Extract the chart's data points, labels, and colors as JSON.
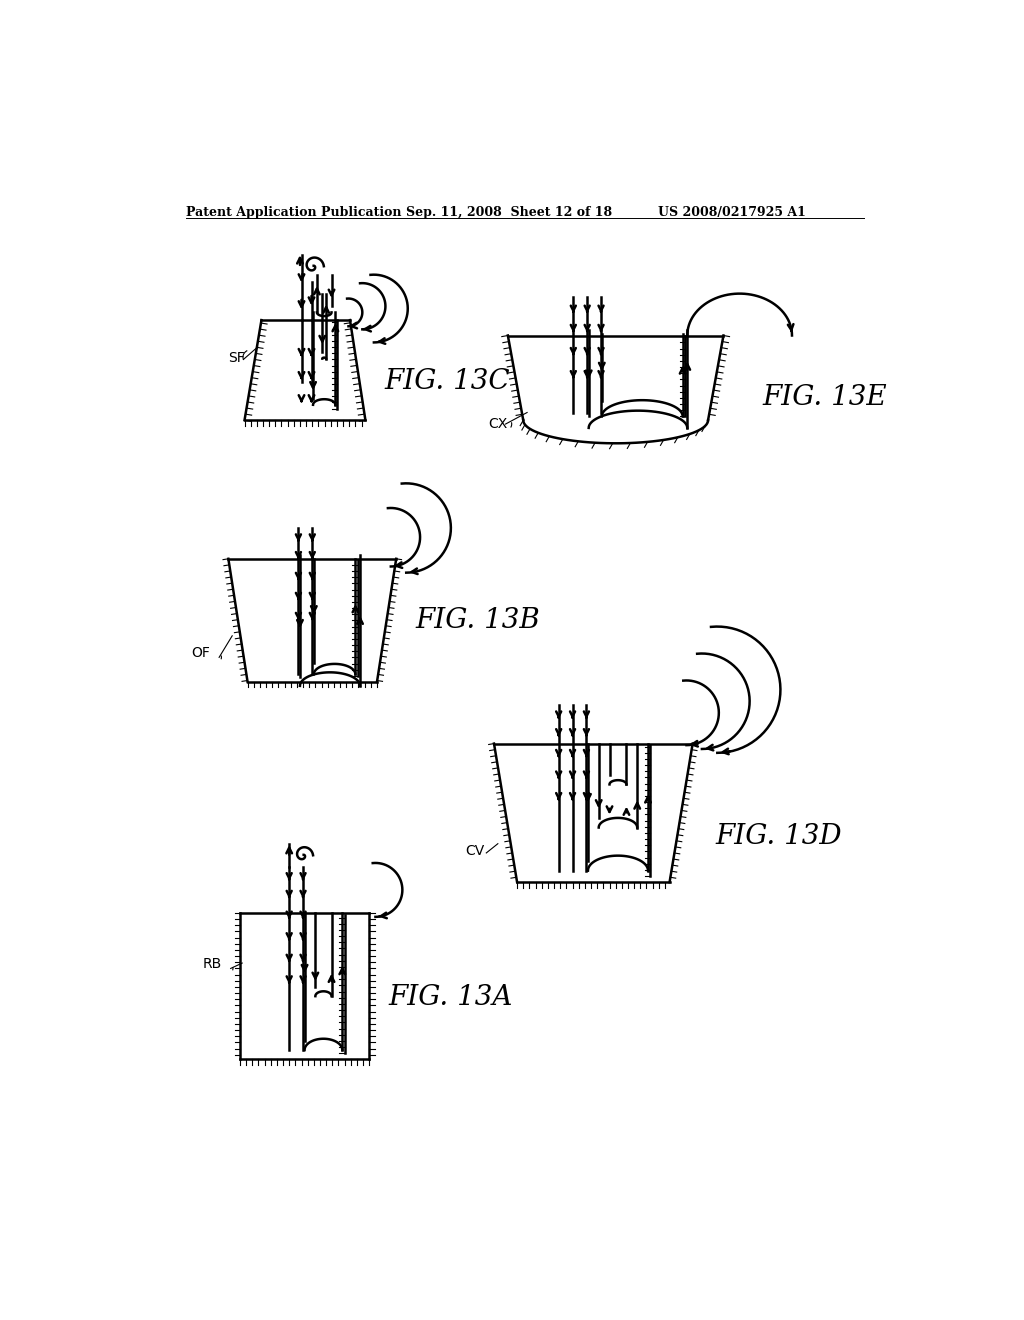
{
  "bg_color": "#ffffff",
  "line_color": "#000000",
  "header_left": "Patent Application Publication",
  "header_mid": "Sep. 11, 2008  Sheet 12 of 18",
  "header_right": "US 2008/0217925 A1"
}
